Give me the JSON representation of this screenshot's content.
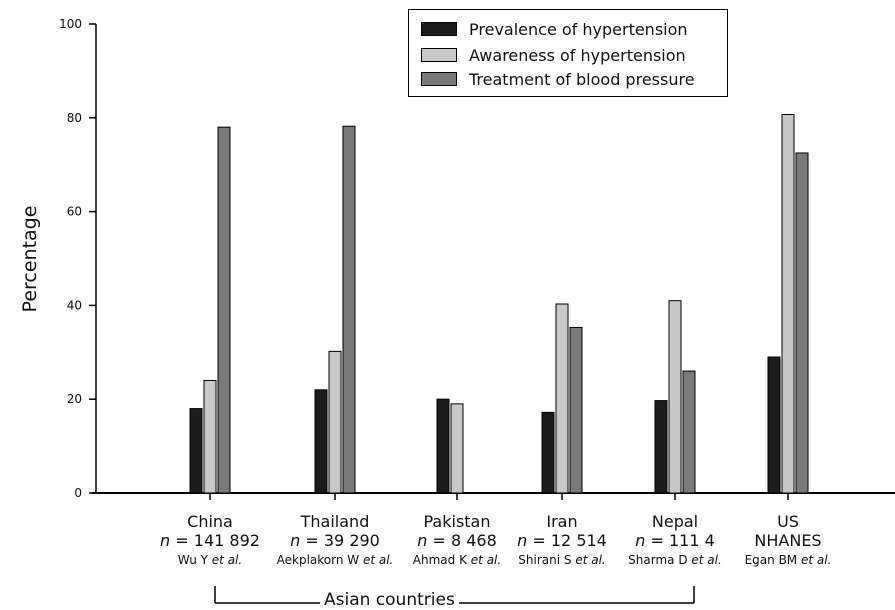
{
  "chart_data": {
    "type": "bar",
    "ylabel": "Percentage",
    "ylim": [
      0,
      100
    ],
    "yticks": [
      "0",
      "20",
      "40",
      "60",
      "80",
      "100"
    ],
    "categories": [
      {
        "name": "China",
        "n_prefix": "n",
        "n_value": "= 141 892",
        "ref_author": "Wu Y",
        "ref_etal": "et al."
      },
      {
        "name": "Thailand",
        "n_prefix": "n",
        "n_value": "= 39 290",
        "ref_author": "Aekplakorn W",
        "ref_etal": "et al."
      },
      {
        "name": "Pakistan",
        "n_prefix": "n",
        "n_value": "= 8 468",
        "ref_author": "Ahmad K",
        "ref_etal": "et al."
      },
      {
        "name": "Iran",
        "n_prefix": "n",
        "n_value": "= 12 514",
        "ref_author": "Shirani S",
        "ref_etal": "et al."
      },
      {
        "name": "Nepal",
        "n_prefix": "n",
        "n_value": "= 111 4",
        "ref_author": "Sharma D",
        "ref_etal": "et al."
      },
      {
        "name": "US",
        "n_prefix": "",
        "n_value": "NHANES",
        "ref_author": "Egan BM",
        "ref_etal": "et al."
      }
    ],
    "series": [
      {
        "name": "Prevalence of hypertension",
        "color": "#1c1c1c",
        "values": [
          18,
          22,
          20,
          17.2,
          19.7,
          29
        ]
      },
      {
        "name": "Awareness of hypertension",
        "color": "#c8c8c8",
        "values": [
          24,
          30.2,
          19,
          40.3,
          41,
          80.7
        ]
      },
      {
        "name": "Treatment of blood pressure",
        "color": "#7a7a7a",
        "values": [
          78,
          78.2,
          null,
          35.3,
          26,
          72.5
        ]
      }
    ],
    "legend_position": "top-right",
    "group_label": "Asian countries"
  }
}
